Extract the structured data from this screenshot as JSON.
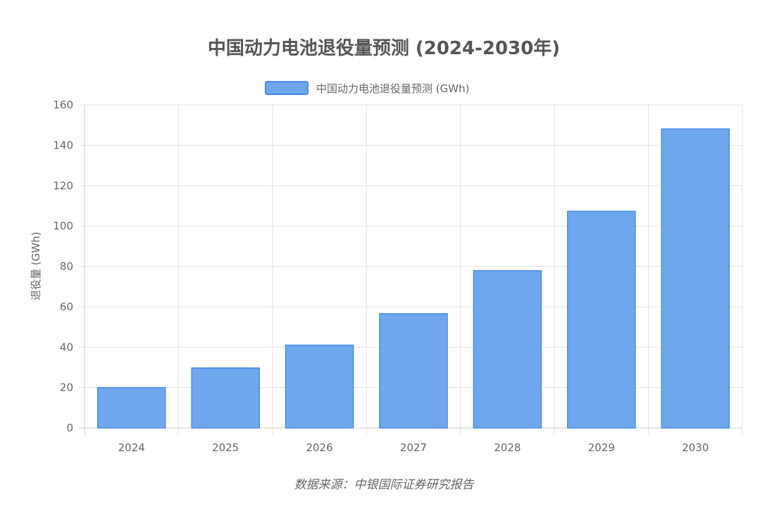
{
  "chart_data": {
    "type": "bar",
    "title": "中国动力电池退役量预测 (2024-2030年)",
    "categories": [
      "2024",
      "2025",
      "2026",
      "2027",
      "2028",
      "2029",
      "2030"
    ],
    "series": [
      {
        "name": "中国动力电池退役量预测 (GWh)",
        "values": [
          20,
          29.7,
          41,
          56.6,
          77.9,
          107.3,
          148.1
        ],
        "color": "#6fa7ee",
        "border_color": "#4a8ae6"
      }
    ],
    "ylabel": "退役量 (GWh)",
    "xlabel": "",
    "ylim": [
      0,
      160
    ],
    "y_ticks": [
      0,
      20,
      40,
      60,
      80,
      100,
      120,
      140,
      160
    ],
    "grid": true,
    "legend_position": "top-center",
    "source": "数据来源：中银国际证券研究报告"
  },
  "colors": {
    "grid": "#e3e3e3",
    "axis": "#cccccc",
    "text": "#666666",
    "title": "#555555"
  }
}
